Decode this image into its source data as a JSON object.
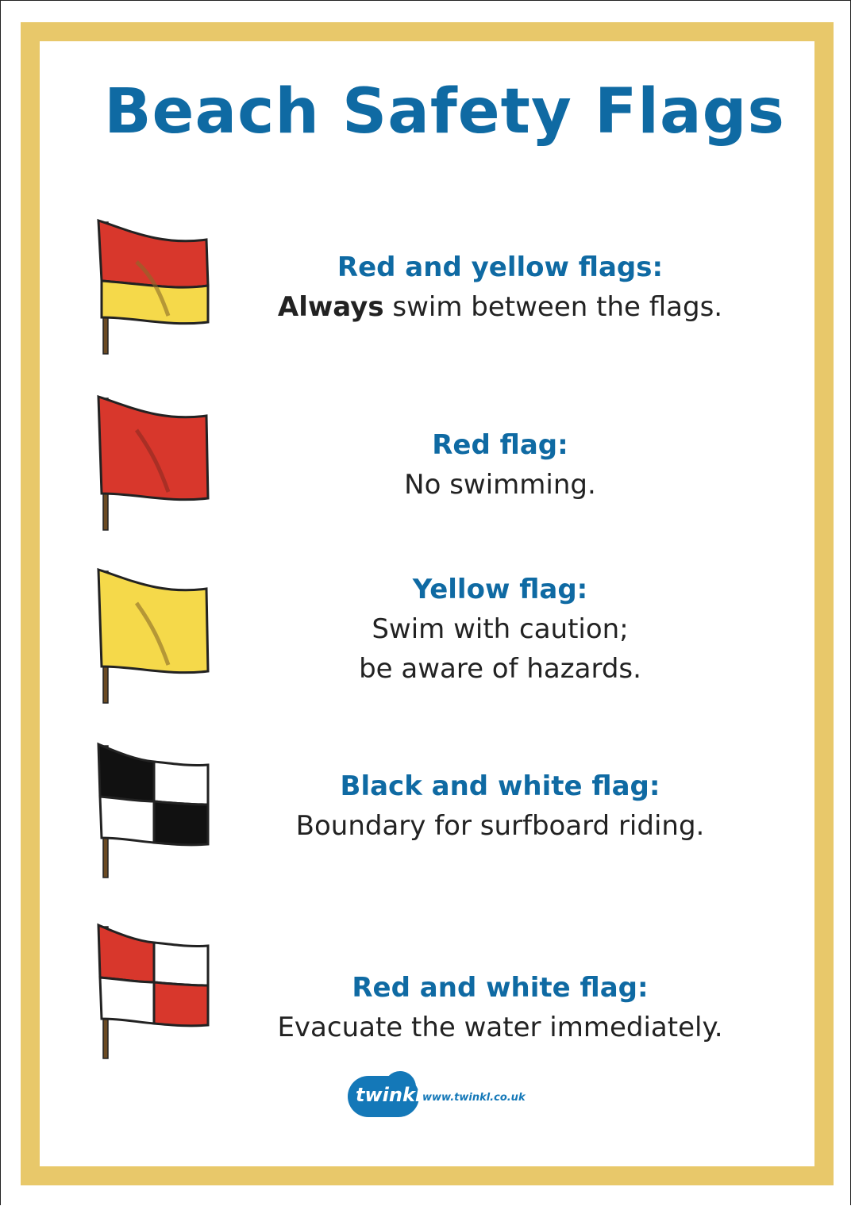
{
  "poster": {
    "title": "Beach Safety Flags"
  },
  "flags": [
    {
      "id": "red-yellow",
      "heading": "Red and yellow flags:",
      "lead_bold": "Always",
      "lines": [
        " swim between the flags."
      ],
      "colors": {
        "top": "#d8372c",
        "bottom": "#f5d94a"
      }
    },
    {
      "id": "red",
      "heading": "Red flag:",
      "lines": [
        "No swimming."
      ],
      "colors": {
        "main": "#d8372c"
      }
    },
    {
      "id": "yellow",
      "heading": "Yellow flag:",
      "lines": [
        "Swim with caution;",
        "be aware of hazards."
      ],
      "colors": {
        "main": "#f5d94a"
      }
    },
    {
      "id": "black-white",
      "heading": "Black and white flag:",
      "lines": [
        "Boundary for surfboard riding."
      ],
      "colors": {
        "a": "#111111",
        "b": "#ffffff"
      }
    },
    {
      "id": "red-white",
      "heading": "Red and white flag:",
      "lines": [
        "Evacuate the water immediately."
      ],
      "colors": {
        "a": "#d8372c",
        "b": "#ffffff"
      }
    }
  ],
  "footer": {
    "logo_text": "twinkl",
    "url": "www.twinkl.co.uk"
  },
  "theme": {
    "frame": "#e8c86a",
    "heading": "#0f6aa3",
    "body_text": "#222222"
  }
}
